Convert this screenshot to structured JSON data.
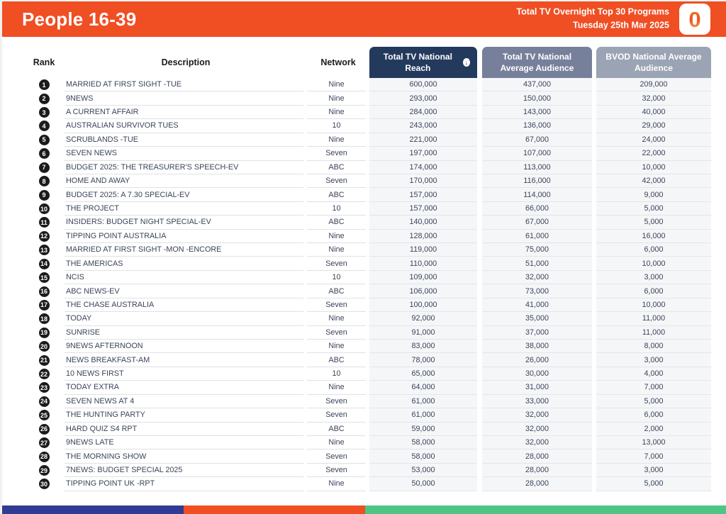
{
  "header": {
    "title": "People 16-39",
    "subtitle_line1": "Total TV Overnight Top 30 Programs",
    "subtitle_line2": "Tuesday 25th Mar 2025",
    "logo_text": "0"
  },
  "table": {
    "columns": {
      "rank": "Rank",
      "description": "Description",
      "network": "Network",
      "reach": "Total TV National Reach",
      "avg_audience": "Total TV National Average Audience",
      "bvod_audience": "BVOD National Average Audience"
    },
    "sort_icon_glyph": "↓",
    "rows": [
      {
        "rank": "1",
        "description": "MARRIED AT FIRST SIGHT -TUE",
        "network": "Nine",
        "reach": "600,000",
        "avg_audience": "437,000",
        "bvod_audience": "209,000"
      },
      {
        "rank": "2",
        "description": "9NEWS",
        "network": "Nine",
        "reach": "293,000",
        "avg_audience": "150,000",
        "bvod_audience": "32,000"
      },
      {
        "rank": "3",
        "description": "A CURRENT AFFAIR",
        "network": "Nine",
        "reach": "284,000",
        "avg_audience": "143,000",
        "bvod_audience": "40,000"
      },
      {
        "rank": "4",
        "description": "AUSTRALIAN SURVIVOR TUES",
        "network": "10",
        "reach": "243,000",
        "avg_audience": "136,000",
        "bvod_audience": "29,000"
      },
      {
        "rank": "5",
        "description": "SCRUBLANDS -TUE",
        "network": "Nine",
        "reach": "221,000",
        "avg_audience": "67,000",
        "bvod_audience": "24,000"
      },
      {
        "rank": "6",
        "description": "SEVEN NEWS",
        "network": "Seven",
        "reach": "197,000",
        "avg_audience": "107,000",
        "bvod_audience": "22,000"
      },
      {
        "rank": "7",
        "description": "BUDGET 2025: THE TREASURER'S SPEECH-EV",
        "network": "ABC",
        "reach": "174,000",
        "avg_audience": "113,000",
        "bvod_audience": "10,000"
      },
      {
        "rank": "8",
        "description": "HOME AND AWAY",
        "network": "Seven",
        "reach": "170,000",
        "avg_audience": "116,000",
        "bvod_audience": "42,000"
      },
      {
        "rank": "9",
        "description": "BUDGET 2025: A 7.30 SPECIAL-EV",
        "network": "ABC",
        "reach": "157,000",
        "avg_audience": "114,000",
        "bvod_audience": "9,000"
      },
      {
        "rank": "10",
        "description": "THE PROJECT",
        "network": "10",
        "reach": "157,000",
        "avg_audience": "66,000",
        "bvod_audience": "5,000"
      },
      {
        "rank": "11",
        "description": "INSIDERS: BUDGET NIGHT SPECIAL-EV",
        "network": "ABC",
        "reach": "140,000",
        "avg_audience": "67,000",
        "bvod_audience": "5,000"
      },
      {
        "rank": "12",
        "description": "TIPPING POINT AUSTRALIA",
        "network": "Nine",
        "reach": "128,000",
        "avg_audience": "61,000",
        "bvod_audience": "16,000"
      },
      {
        "rank": "13",
        "description": "MARRIED AT FIRST SIGHT -MON -ENCORE",
        "network": "Nine",
        "reach": "119,000",
        "avg_audience": "75,000",
        "bvod_audience": "6,000"
      },
      {
        "rank": "14",
        "description": "THE AMERICAS",
        "network": "Seven",
        "reach": "110,000",
        "avg_audience": "51,000",
        "bvod_audience": "10,000"
      },
      {
        "rank": "15",
        "description": "NCIS",
        "network": "10",
        "reach": "109,000",
        "avg_audience": "32,000",
        "bvod_audience": "3,000"
      },
      {
        "rank": "16",
        "description": "ABC NEWS-EV",
        "network": "ABC",
        "reach": "106,000",
        "avg_audience": "73,000",
        "bvod_audience": "6,000"
      },
      {
        "rank": "17",
        "description": "THE CHASE AUSTRALIA",
        "network": "Seven",
        "reach": "100,000",
        "avg_audience": "41,000",
        "bvod_audience": "10,000"
      },
      {
        "rank": "18",
        "description": "TODAY",
        "network": "Nine",
        "reach": "92,000",
        "avg_audience": "35,000",
        "bvod_audience": "11,000"
      },
      {
        "rank": "19",
        "description": "SUNRISE",
        "network": "Seven",
        "reach": "91,000",
        "avg_audience": "37,000",
        "bvod_audience": "11,000"
      },
      {
        "rank": "20",
        "description": "9NEWS AFTERNOON",
        "network": "Nine",
        "reach": "83,000",
        "avg_audience": "38,000",
        "bvod_audience": "8,000"
      },
      {
        "rank": "21",
        "description": "NEWS BREAKFAST-AM",
        "network": "ABC",
        "reach": "78,000",
        "avg_audience": "26,000",
        "bvod_audience": "3,000"
      },
      {
        "rank": "22",
        "description": "10 NEWS FIRST",
        "network": "10",
        "reach": "65,000",
        "avg_audience": "30,000",
        "bvod_audience": "4,000"
      },
      {
        "rank": "23",
        "description": "TODAY EXTRA",
        "network": "Nine",
        "reach": "64,000",
        "avg_audience": "31,000",
        "bvod_audience": "7,000"
      },
      {
        "rank": "24",
        "description": "SEVEN NEWS AT 4",
        "network": "Seven",
        "reach": "61,000",
        "avg_audience": "33,000",
        "bvod_audience": "5,000"
      },
      {
        "rank": "25",
        "description": "THE HUNTING PARTY",
        "network": "Seven",
        "reach": "61,000",
        "avg_audience": "32,000",
        "bvod_audience": "6,000"
      },
      {
        "rank": "26",
        "description": "HARD QUIZ S4 RPT",
        "network": "ABC",
        "reach": "59,000",
        "avg_audience": "32,000",
        "bvod_audience": "2,000"
      },
      {
        "rank": "27",
        "description": "9NEWS LATE",
        "network": "Nine",
        "reach": "58,000",
        "avg_audience": "32,000",
        "bvod_audience": "13,000"
      },
      {
        "rank": "28",
        "description": "THE MORNING SHOW",
        "network": "Seven",
        "reach": "58,000",
        "avg_audience": "28,000",
        "bvod_audience": "7,000"
      },
      {
        "rank": "29",
        "description": "7NEWS: BUDGET SPECIAL 2025",
        "network": "Seven",
        "reach": "53,000",
        "avg_audience": "28,000",
        "bvod_audience": "3,000"
      },
      {
        "rank": "30",
        "description": "TIPPING POINT UK -RPT",
        "network": "Nine",
        "reach": "50,000",
        "avg_audience": "28,000",
        "bvod_audience": "5,000"
      }
    ]
  },
  "colors": {
    "brand_orange": "#F04E23",
    "reach_header": "#243A5C",
    "avg_header": "#77809A",
    "bvod_header": "#9BA4B4",
    "footer_navy": "#303B93",
    "footer_orange": "#F04E23",
    "footer_green": "#4FC585"
  }
}
